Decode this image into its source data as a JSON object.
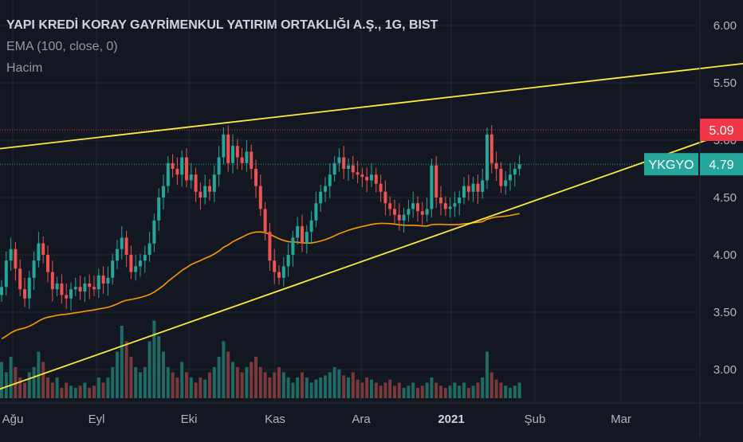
{
  "legend": {
    "title": "YAPI KREDİ KORAY GAYRİMENKUL YATIRIM ORTAKLIĞI A.Ş., 1G, BIST",
    "ema": "EMA (100, close, 0)",
    "volume": "Hacim"
  },
  "chart_data": {
    "type": "candlestick",
    "title": "YAPI KREDİ KORAY GAYRİMENKUL YATIRIM ORTAKLIĞI A.Ş., 1G, BIST",
    "ylim": [
      2.75,
      6.2
    ],
    "y_ticks": [
      "6.00",
      "5.50",
      "5.00",
      "4.50",
      "4.00",
      "3.50",
      "3.00"
    ],
    "x_ticks": [
      {
        "label": "Ağu",
        "bold": false
      },
      {
        "label": "Eyl",
        "bold": false
      },
      {
        "label": "Eki",
        "bold": false
      },
      {
        "label": "Kas",
        "bold": false
      },
      {
        "label": "Ara",
        "bold": false
      },
      {
        "label": "2021",
        "bold": true
      },
      {
        "label": "Şub",
        "bold": false
      },
      {
        "label": "Mar",
        "bold": false
      }
    ],
    "price_labels": [
      {
        "name": "high-line-label",
        "value": "5.09",
        "color": "#f23645"
      },
      {
        "name": "last-price-label",
        "symbol": "YKGYO",
        "value": "4.79",
        "color": "#26a69a"
      }
    ],
    "closes": [
      3.72,
      3.95,
      4.05,
      3.88,
      3.7,
      3.62,
      3.8,
      3.95,
      4.1,
      4.0,
      3.85,
      3.7,
      3.75,
      3.65,
      3.62,
      3.7,
      3.72,
      3.68,
      3.75,
      3.72,
      3.7,
      3.82,
      3.75,
      3.8,
      3.95,
      4.05,
      4.15,
      4.0,
      3.85,
      3.9,
      3.95,
      4.0,
      4.1,
      4.3,
      4.5,
      4.6,
      4.8,
      4.75,
      4.7,
      4.85,
      4.65,
      4.7,
      4.55,
      4.5,
      4.6,
      4.55,
      4.7,
      4.85,
      5.05,
      4.8,
      4.95,
      4.85,
      4.8,
      4.9,
      4.75,
      4.6,
      4.4,
      4.2,
      3.95,
      3.85,
      3.8,
      3.9,
      4.0,
      4.15,
      4.25,
      4.1,
      4.2,
      4.3,
      4.45,
      4.55,
      4.6,
      4.7,
      4.8,
      4.85,
      4.75,
      4.78,
      4.72,
      4.7,
      4.68,
      4.65,
      4.7,
      4.62,
      4.55,
      4.45,
      4.4,
      4.35,
      4.3,
      4.35,
      4.4,
      4.45,
      4.38,
      4.35,
      4.4,
      4.78,
      4.5,
      4.45,
      4.4,
      4.42,
      4.45,
      4.5,
      4.6,
      4.55,
      4.62,
      4.55,
      4.65,
      5.05,
      4.8,
      4.75,
      4.6,
      4.65,
      4.7,
      4.75,
      4.79
    ],
    "opens": [
      3.65,
      3.72,
      3.95,
      4.05,
      3.88,
      3.7,
      3.62,
      3.8,
      3.95,
      4.1,
      4.0,
      3.85,
      3.7,
      3.75,
      3.65,
      3.62,
      3.7,
      3.72,
      3.68,
      3.75,
      3.72,
      3.7,
      3.82,
      3.75,
      3.8,
      3.95,
      4.05,
      4.15,
      4.0,
      3.85,
      3.9,
      3.95,
      4.0,
      4.1,
      4.3,
      4.5,
      4.6,
      4.8,
      4.75,
      4.7,
      4.85,
      4.65,
      4.7,
      4.55,
      4.5,
      4.6,
      4.55,
      4.7,
      4.85,
      5.05,
      4.8,
      4.95,
      4.85,
      4.8,
      4.9,
      4.75,
      4.6,
      4.4,
      4.2,
      3.95,
      3.85,
      3.8,
      3.9,
      4.0,
      4.15,
      4.25,
      4.1,
      4.2,
      4.3,
      4.45,
      4.55,
      4.6,
      4.7,
      4.8,
      4.85,
      4.75,
      4.78,
      4.72,
      4.7,
      4.68,
      4.65,
      4.7,
      4.62,
      4.55,
      4.45,
      4.4,
      4.35,
      4.3,
      4.35,
      4.4,
      4.45,
      4.38,
      4.35,
      4.4,
      4.78,
      4.5,
      4.45,
      4.4,
      4.42,
      4.45,
      4.5,
      4.6,
      4.55,
      4.62,
      4.55,
      4.65,
      5.05,
      4.8,
      4.75,
      4.6,
      4.65,
      4.7,
      4.75
    ],
    "volumes": [
      0.35,
      0.25,
      0.4,
      0.3,
      0.2,
      0.15,
      0.25,
      0.3,
      0.45,
      0.35,
      0.2,
      0.15,
      0.2,
      0.1,
      0.15,
      0.12,
      0.1,
      0.12,
      0.15,
      0.1,
      0.12,
      0.2,
      0.15,
      0.2,
      0.3,
      0.45,
      0.7,
      0.55,
      0.4,
      0.3,
      0.25,
      0.3,
      0.55,
      0.75,
      0.6,
      0.45,
      0.3,
      0.25,
      0.2,
      0.35,
      0.25,
      0.2,
      0.15,
      0.2,
      0.18,
      0.25,
      0.3,
      0.4,
      0.55,
      0.45,
      0.35,
      0.3,
      0.25,
      0.3,
      0.35,
      0.4,
      0.3,
      0.25,
      0.2,
      0.25,
      0.3,
      0.25,
      0.2,
      0.15,
      0.2,
      0.25,
      0.2,
      0.15,
      0.18,
      0.2,
      0.22,
      0.25,
      0.3,
      0.28,
      0.22,
      0.2,
      0.25,
      0.18,
      0.15,
      0.2,
      0.18,
      0.15,
      0.12,
      0.15,
      0.18,
      0.12,
      0.15,
      0.1,
      0.12,
      0.15,
      0.1,
      0.12,
      0.15,
      0.2,
      0.15,
      0.12,
      0.1,
      0.12,
      0.15,
      0.12,
      0.15,
      0.1,
      0.12,
      0.15,
      0.2,
      0.45,
      0.25,
      0.18,
      0.15,
      0.12,
      0.1,
      0.12,
      0.15
    ],
    "ema": {
      "start": 3.25,
      "end": 4.36
    },
    "lines": [
      {
        "name": "upper-trendline",
        "start": {
          "bar": -6,
          "price": 4.9
        },
        "end": {
          "bar": 163,
          "price": 5.68
        },
        "color": "#ffeb3b"
      },
      {
        "name": "lower-trendline",
        "start": {
          "bar": -6,
          "price": 2.75
        },
        "end": {
          "bar": 163,
          "price": 5.15
        },
        "color": "#ffeb3b"
      }
    ],
    "high_level": 5.09,
    "last_price": 4.79,
    "colors": {
      "up": "#26a69a",
      "down": "#ef5350",
      "up_vol": "#1f6b63",
      "down_vol": "#7a3a3c",
      "ema": "#ff9800",
      "background": "#131722",
      "grid": "#232733",
      "axis_text": "#b2b5be"
    }
  }
}
